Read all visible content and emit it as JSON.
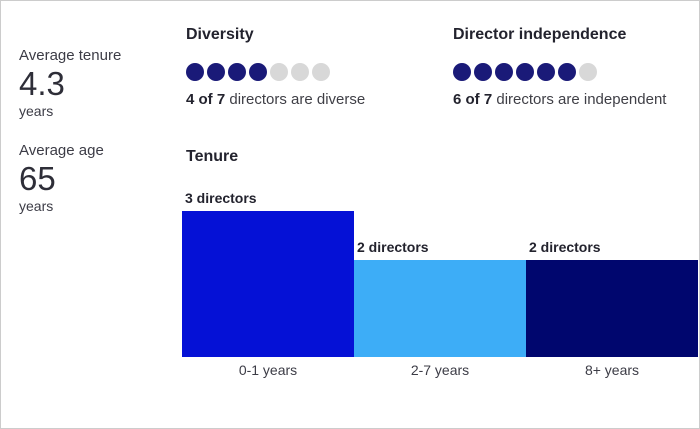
{
  "panel": {
    "stats": [
      {
        "label": "Average tenure",
        "value": "4.3",
        "unit": "years"
      },
      {
        "label": "Average age",
        "value": "65",
        "unit": "years"
      }
    ],
    "diversity": {
      "title": "Diversity",
      "filled": 4,
      "total": 7,
      "caption_strong": "4 of 7",
      "caption_rest": " directors are diverse"
    },
    "independence": {
      "title": "Director independence",
      "filled": 6,
      "total": 7,
      "caption_strong": "6 of 7",
      "caption_rest": " directors are independent"
    }
  },
  "colors": {
    "dot_filled": "#1a1a78",
    "dot_empty": "#d8d8d8",
    "accent_blue": "#0511d6",
    "accent_light_blue": "#3dadf7",
    "accent_navy": "#00066e"
  },
  "chart_data": {
    "type": "bar",
    "title": "Tenure",
    "categories": [
      "0-1 years",
      "2-7 years",
      "8+ years"
    ],
    "values": [
      3,
      2,
      2
    ],
    "bar_labels": [
      "3 directors",
      "2 directors",
      "2 directors"
    ],
    "colors": [
      "#0511d6",
      "#3dadf7",
      "#00066e"
    ],
    "ylim": [
      0,
      3
    ],
    "grid": false,
    "legend": false
  }
}
